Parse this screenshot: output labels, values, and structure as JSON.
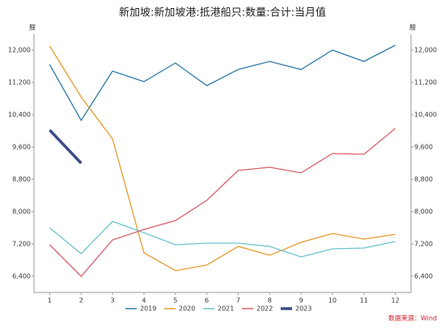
{
  "chart_data": {
    "type": "line",
    "title": "新加坡:新加坡港:抵港船只:数量:合计:当月值",
    "y_label": "艘",
    "y2_label": "艘",
    "source": "数据来源：Wind",
    "categories": [
      "1",
      "2",
      "3",
      "4",
      "5",
      "6",
      "7",
      "8",
      "9",
      "10",
      "11",
      "12"
    ],
    "series": [
      {
        "name": "2019",
        "color": "#2f7aa6",
        "values": [
          11640,
          10260,
          11480,
          11220,
          11680,
          11120,
          11520,
          11720,
          11520,
          12000,
          11720,
          12120
        ]
      },
      {
        "name": "2020",
        "color": "#e89a2c",
        "values": [
          12100,
          10840,
          9800,
          6980,
          6540,
          6680,
          7140,
          6920,
          7240,
          7460,
          7320,
          7440
        ]
      },
      {
        "name": "2021",
        "color": "#6cc3d3",
        "values": [
          7600,
          6960,
          7760,
          7480,
          7180,
          7220,
          7220,
          7140,
          6880,
          7080,
          7100,
          7260
        ]
      },
      {
        "name": "2022",
        "color": "#d8606b",
        "values": [
          7180,
          6400,
          7300,
          7560,
          7780,
          8280,
          9020,
          9100,
          8960,
          9440,
          9420,
          10060
        ]
      },
      {
        "name": "2023",
        "color": "#3b4c86",
        "values": [
          10020,
          9200,
          null,
          null,
          null,
          null,
          null,
          null,
          null,
          null,
          null,
          null
        ]
      }
    ],
    "ylim": [
      6000,
      12400
    ],
    "yticks": [
      {
        "value": 6400,
        "label": "6,400"
      },
      {
        "value": 7200,
        "label": "7,200"
      },
      {
        "value": 8000,
        "label": "8,000"
      },
      {
        "value": 8800,
        "label": "8,800"
      },
      {
        "value": 9600,
        "label": "9,600"
      },
      {
        "value": 10400,
        "label": "10,400"
      },
      {
        "value": 11200,
        "label": "11,200"
      },
      {
        "value": 12000,
        "label": "12,000"
      }
    ],
    "y2lim": [
      6000,
      12400
    ],
    "y2ticks": [
      {
        "value": 6400,
        "label": "6,400"
      },
      {
        "value": 7200,
        "label": "7,200"
      },
      {
        "value": 8000,
        "label": "8,000"
      },
      {
        "value": 8800,
        "label": "8,800"
      },
      {
        "value": 9600,
        "label": "9,600"
      },
      {
        "value": 10400,
        "label": "10,400"
      },
      {
        "value": 11200,
        "label": "11,200"
      },
      {
        "value": 12000,
        "label": "12,000"
      }
    ],
    "grid": false,
    "legend": "bottom"
  }
}
